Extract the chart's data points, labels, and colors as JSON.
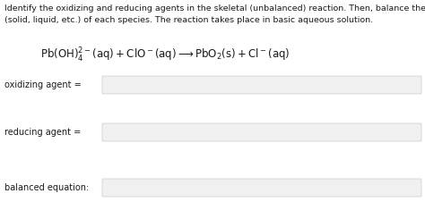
{
  "bg_color": "#ffffff",
  "text_color": "#1a1a1a",
  "box_color": "#f0f0f0",
  "box_edge_color": "#cccccc",
  "header_line1": "Identify the oxidizing and reducing agents in the skeletal (unbalanced) reaction. Then, balance the reaction, including the phase",
  "header_line2": "(solid, liquid, etc.) of each species. The reaction takes place in basic aqueous solution.",
  "label1": "oxidizing agent =",
  "label2": "reducing agent =",
  "label3": "balanced equation:",
  "header_fontsize": 6.8,
  "equation_fontsize": 8.5,
  "label_fontsize": 7.0,
  "fig_width": 4.74,
  "fig_height": 2.45,
  "dpi": 100
}
